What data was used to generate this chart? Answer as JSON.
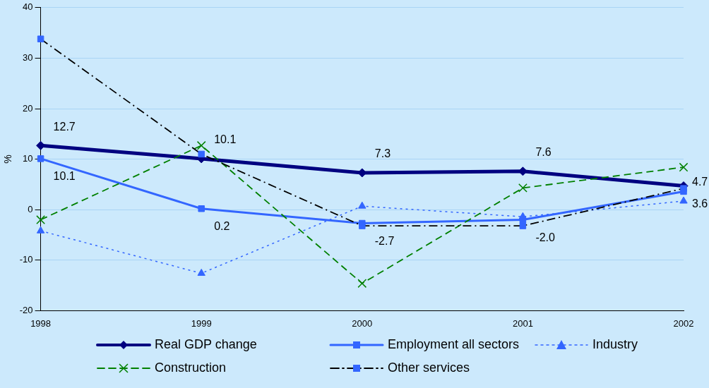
{
  "chart_data": {
    "type": "line",
    "ylabel": "%",
    "categories": [
      "1998",
      "1999",
      "2000",
      "2001",
      "2002"
    ],
    "ylim": [
      -20,
      40
    ],
    "yticks": [
      -20,
      -10,
      0,
      10,
      20,
      30,
      40
    ],
    "grid": "y",
    "legend": "bottom",
    "series": [
      {
        "name": "Real GDP change",
        "color": "#000080",
        "marker": "diamond",
        "line_style": "solid",
        "values": [
          12.7,
          10.1,
          7.3,
          7.6,
          4.7
        ],
        "value_labels": [
          "12.7",
          "10.1",
          "7.3",
          "7.6",
          "4.7"
        ]
      },
      {
        "name": "Employment all sectors",
        "color": "#3366ff",
        "marker": "square",
        "line_style": "solid",
        "values": [
          10.1,
          0.2,
          -2.7,
          -2.0,
          3.6
        ],
        "value_labels": [
          "10.1",
          "0.2",
          "-2.7",
          "-2.0",
          "3.6"
        ]
      },
      {
        "name": "Industry",
        "color": "#3366ff",
        "marker": "triangle",
        "line_style": "dotted",
        "values": [
          -4.2,
          -12.6,
          0.7,
          -1.4,
          1.7
        ]
      },
      {
        "name": "Construction",
        "color": "#008000",
        "marker": "cross",
        "line_style": "dashed",
        "values": [
          -2.0,
          12.7,
          -14.6,
          4.3,
          8.4
        ]
      },
      {
        "name": "Other services",
        "color": "#000000",
        "marker": "square",
        "line_style": "dashdot",
        "values": [
          33.8,
          11.0,
          -3.2,
          -3.2,
          4.2
        ]
      }
    ]
  }
}
